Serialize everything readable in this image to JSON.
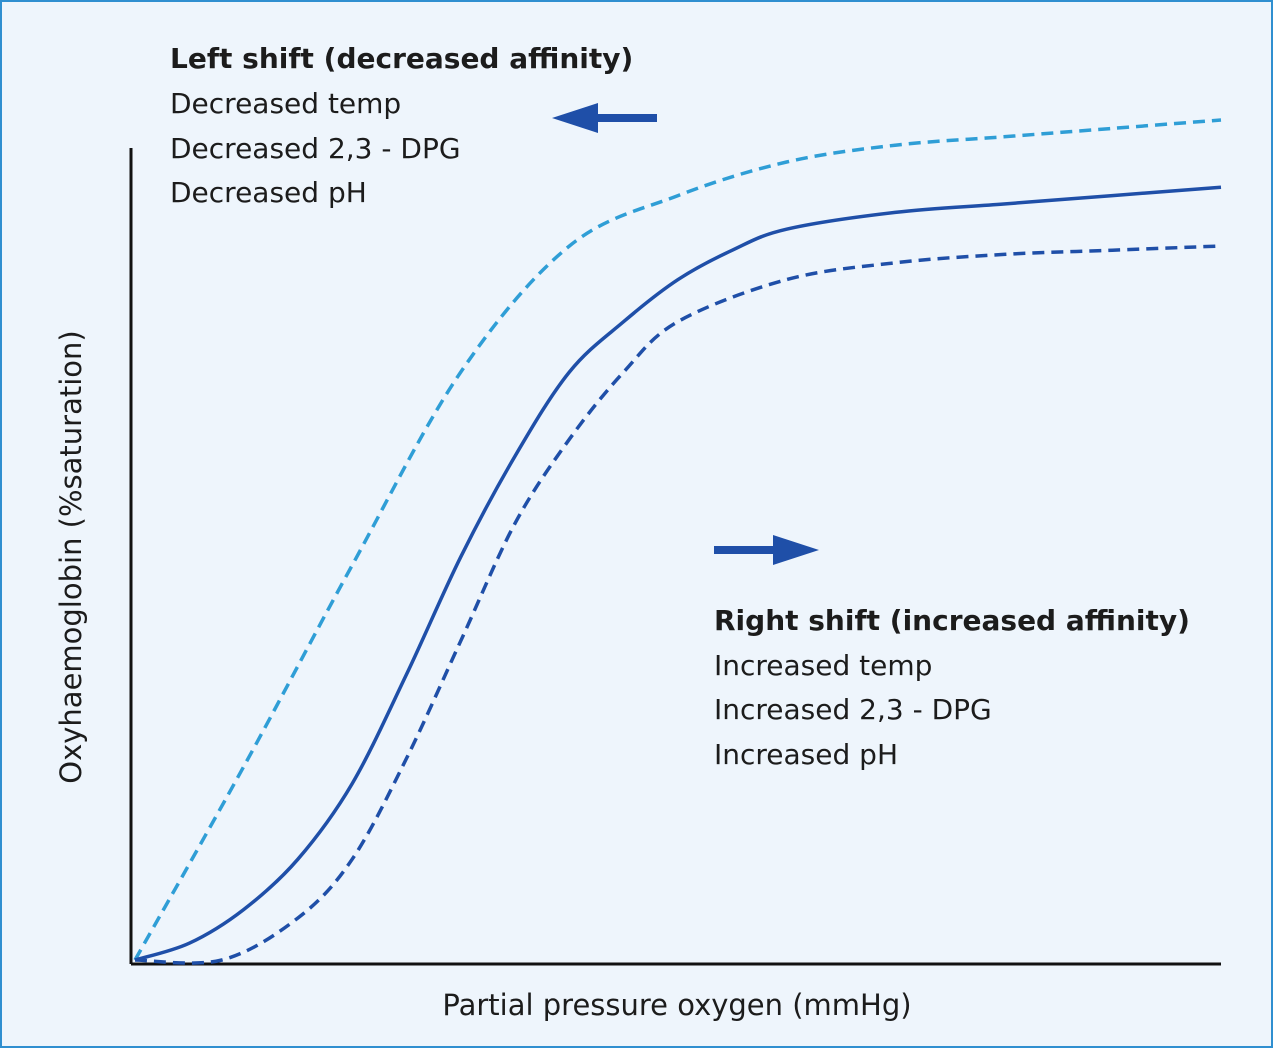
{
  "chart_data": {
    "type": "line",
    "title": "",
    "xlabel": "Partial  pressure oxygen (mmHg)",
    "ylabel": "Oxyhaemoglobin (%saturation)",
    "x_ticks": false,
    "y_ticks": false,
    "grid": false,
    "xlim": [
      0,
      100
    ],
    "ylim": [
      0,
      100
    ],
    "series": [
      {
        "key": "left",
        "style": "dashed",
        "color": "#2f9ed6",
        "points": [
          [
            0,
            0
          ],
          [
            10,
            23
          ],
          [
            20,
            47
          ],
          [
            30,
            70
          ],
          [
            40,
            85
          ],
          [
            50,
            91
          ],
          [
            60,
            95
          ],
          [
            70,
            97
          ],
          [
            80,
            98
          ],
          [
            90,
            99
          ],
          [
            100,
            100
          ]
        ]
      },
      {
        "key": "normal",
        "style": "solid",
        "color": "#1f4fa8",
        "points": [
          [
            0,
            0
          ],
          [
            5,
            2
          ],
          [
            10,
            6
          ],
          [
            15,
            12
          ],
          [
            20,
            21
          ],
          [
            25,
            34
          ],
          [
            30,
            48
          ],
          [
            35,
            60
          ],
          [
            40,
            70
          ],
          [
            45,
            76
          ],
          [
            50,
            81
          ],
          [
            55,
            84.5
          ],
          [
            60,
            87
          ],
          [
            70,
            89
          ],
          [
            80,
            90
          ],
          [
            90,
            91
          ],
          [
            100,
            92
          ]
        ]
      },
      {
        "key": "right",
        "style": "dashed",
        "color": "#1f4fa8",
        "points": [
          [
            0,
            0
          ],
          [
            8,
            0
          ],
          [
            15,
            5
          ],
          [
            20,
            12
          ],
          [
            25,
            24
          ],
          [
            30,
            38
          ],
          [
            35,
            52
          ],
          [
            40,
            62
          ],
          [
            45,
            70
          ],
          [
            50,
            76
          ],
          [
            60,
            81
          ],
          [
            70,
            83
          ],
          [
            80,
            84
          ],
          [
            90,
            84.5
          ],
          [
            100,
            85
          ]
        ]
      }
    ],
    "annotations": {
      "left": {
        "heading": "Left shift (decreased affinity)",
        "lines": [
          "Decreased temp",
          "Decreased 2,3 - DPG",
          "Decreased pH"
        ],
        "arrow": "left",
        "arrow_color": "#1f4fa8"
      },
      "right": {
        "heading": "Right shift (increased affinity)",
        "lines": [
          "Increased temp",
          "Increased 2,3 - DPG",
          "Increased pH"
        ],
        "arrow": "right",
        "arrow_color": "#1f4fa8"
      }
    },
    "frame_color": "#2f8fd0",
    "background": "#eef5fc"
  }
}
